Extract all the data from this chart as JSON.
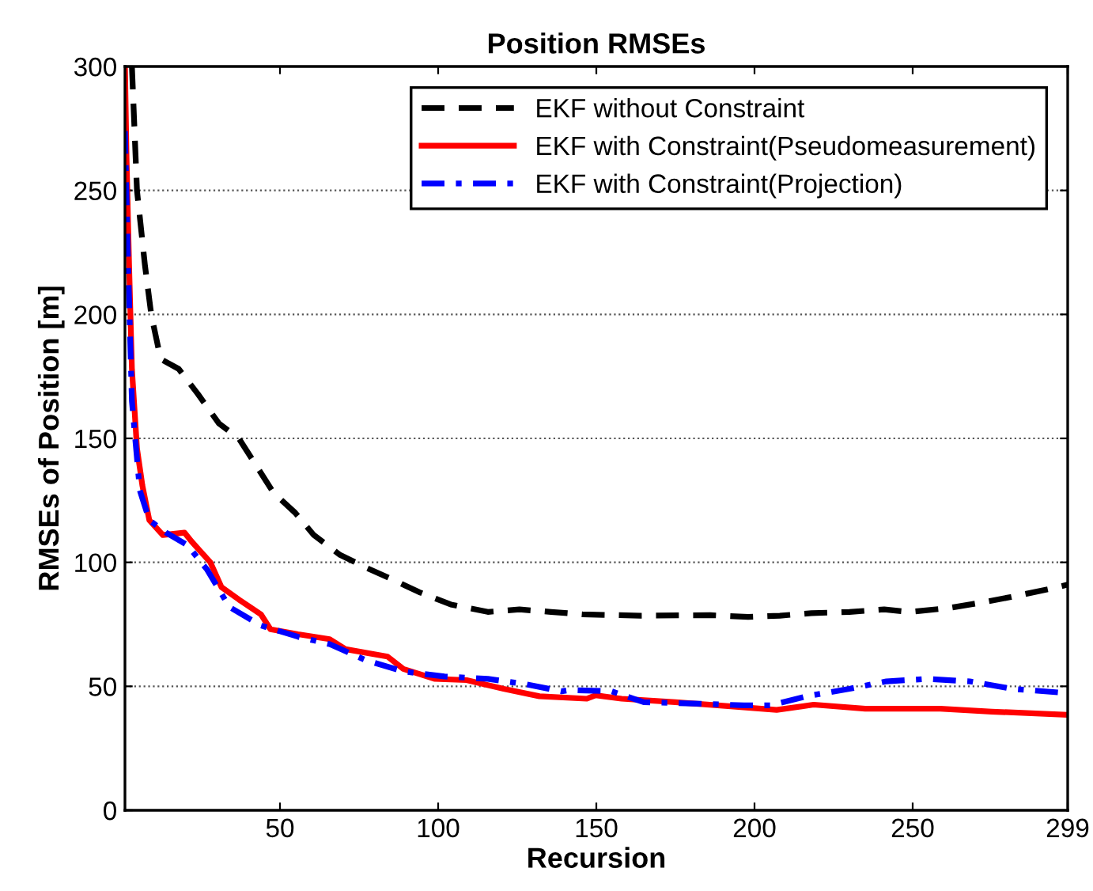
{
  "chart_data": {
    "type": "line",
    "title": "Position RMSEs",
    "xlabel": "Recursion",
    "ylabel": "RMSEs of Position [m]",
    "xlim": [
      1,
      299
    ],
    "xticks": [
      50,
      100,
      150,
      200,
      250,
      299
    ],
    "ylim": [
      0,
      300
    ],
    "yticks": [
      0,
      50,
      100,
      150,
      200,
      250,
      300
    ],
    "grid": "y",
    "legend": "top right",
    "marker": "none",
    "series": [
      {
        "name": "EKF without Constraint",
        "color": "#000000",
        "line_style": "dashed",
        "x": [
          3.2,
          4.8,
          7.3,
          9.3,
          12.3,
          18,
          24,
          30.7,
          37,
          42,
          48,
          54.8,
          60.7,
          69,
          77,
          85.7,
          94,
          104,
          115.7,
          125.7,
          135.7,
          145.7,
          164,
          186,
          198,
          208,
          218,
          230,
          241,
          249,
          261,
          271,
          281,
          294,
          299
        ],
        "values": [
          300,
          250,
          220,
          200,
          182,
          178,
          168,
          156,
          150,
          140,
          128,
          120,
          111,
          103,
          98,
          93,
          88,
          83,
          80,
          81,
          80,
          79,
          78.5,
          78.7,
          78,
          78.5,
          79.5,
          80,
          81,
          80,
          81.5,
          83.6,
          86,
          89.5,
          91
        ]
      },
      {
        "name": "EKF with Constraint(Pseudomeasurement)",
        "color": "#ff0000",
        "line_style": "solid",
        "x": [
          1,
          1.5,
          2.3,
          3.2,
          4.8,
          6.5,
          8.7,
          13,
          19.8,
          22,
          28,
          31.5,
          37,
          44,
          47,
          55.7,
          65.7,
          70.7,
          84,
          89,
          99,
          109,
          120.7,
          132,
          147,
          149.8,
          158,
          175,
          191.7,
          207,
          218.7,
          235,
          258.7,
          275,
          298.7
        ],
        "values": [
          300,
          263,
          220,
          178,
          146,
          131,
          117,
          111,
          112,
          108.5,
          100,
          90,
          85,
          79,
          73,
          71,
          69,
          65,
          62,
          57,
          53,
          52.5,
          49,
          46,
          45,
          46.4,
          45,
          43.6,
          42,
          40.5,
          42.6,
          41,
          41,
          39.8,
          38.5
        ]
      },
      {
        "name": "EKF with Constraint(Projection)",
        "color": "#0000ff",
        "line_style": "dashdot",
        "x": [
          1,
          2,
          3.2,
          5.7,
          8.7,
          14,
          20.7,
          27,
          34,
          44,
          55.7,
          65.7,
          77,
          89,
          102,
          115.7,
          127,
          139,
          141.5,
          154.8,
          165,
          183,
          196.7,
          205,
          216.5,
          230,
          241.7,
          255,
          268,
          281.5,
          296.5
        ],
        "values": [
          274,
          220,
          165,
          129,
          117,
          112,
          107,
          97,
          82,
          74.5,
          70,
          67,
          60.6,
          56,
          54,
          53,
          51,
          48,
          48.5,
          48,
          43.6,
          43,
          42.3,
          42.3,
          46,
          49,
          52,
          53,
          52,
          49,
          47.5
        ]
      }
    ]
  }
}
